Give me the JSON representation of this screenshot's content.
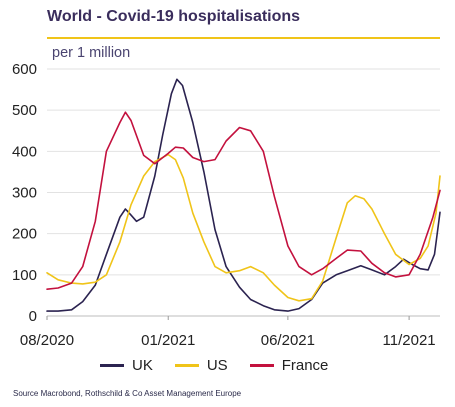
{
  "header": {
    "title": "World - Covid-19 hospitalisations",
    "unit": "per 1 million"
  },
  "source": "Source Macrobond, Rothschild & Co Asset Management Europe",
  "colors": {
    "UK": "#2b2350",
    "US": "#f0c419",
    "France": "#c3113e",
    "accent_rule": "#f0c419",
    "title": "#3a2d5c"
  },
  "chart_data": {
    "type": "line",
    "title": "World - Covid-19 hospitalisations",
    "ylabel": "per 1 million",
    "xlabel": "",
    "ylim": [
      0,
      600
    ],
    "yticks": [
      0,
      100,
      200,
      300,
      400,
      500,
      600
    ],
    "x_start": "2020-08-01",
    "x_end": "2021-12-10",
    "xticks": [
      {
        "date": "2020-08-01",
        "label": "08/2020"
      },
      {
        "date": "2021-01-01",
        "label": "01/2021"
      },
      {
        "date": "2021-06-01",
        "label": "06/2021"
      },
      {
        "date": "2021-11-01",
        "label": "11/2021"
      }
    ],
    "grid": "horizontal",
    "legend_position": "bottom",
    "series": [
      {
        "name": "UK",
        "points": [
          [
            "2020-08-01",
            12
          ],
          [
            "2020-08-15",
            12
          ],
          [
            "2020-09-01",
            15
          ],
          [
            "2020-09-15",
            35
          ],
          [
            "2020-10-01",
            75
          ],
          [
            "2020-10-15",
            150
          ],
          [
            "2020-11-01",
            240
          ],
          [
            "2020-11-08",
            260
          ],
          [
            "2020-11-15",
            245
          ],
          [
            "2020-11-22",
            230
          ],
          [
            "2020-12-01",
            240
          ],
          [
            "2020-12-15",
            340
          ],
          [
            "2020-12-25",
            440
          ],
          [
            "2021-01-05",
            540
          ],
          [
            "2021-01-12",
            575
          ],
          [
            "2021-01-19",
            560
          ],
          [
            "2021-02-01",
            470
          ],
          [
            "2021-02-15",
            350
          ],
          [
            "2021-03-01",
            210
          ],
          [
            "2021-03-15",
            120
          ],
          [
            "2021-04-01",
            70
          ],
          [
            "2021-04-15",
            40
          ],
          [
            "2021-05-01",
            25
          ],
          [
            "2021-05-15",
            15
          ],
          [
            "2021-06-01",
            12
          ],
          [
            "2021-06-15",
            18
          ],
          [
            "2021-07-01",
            40
          ],
          [
            "2021-07-15",
            80
          ],
          [
            "2021-08-01",
            100
          ],
          [
            "2021-08-15",
            110
          ],
          [
            "2021-09-01",
            122
          ],
          [
            "2021-09-15",
            112
          ],
          [
            "2021-10-01",
            100
          ],
          [
            "2021-10-15",
            120
          ],
          [
            "2021-10-25",
            138
          ],
          [
            "2021-11-05",
            125
          ],
          [
            "2021-11-15",
            115
          ],
          [
            "2021-11-25",
            112
          ],
          [
            "2021-12-03",
            150
          ],
          [
            "2021-12-10",
            252
          ]
        ]
      },
      {
        "name": "US",
        "points": [
          [
            "2020-08-01",
            105
          ],
          [
            "2020-08-15",
            88
          ],
          [
            "2020-09-01",
            80
          ],
          [
            "2020-09-15",
            78
          ],
          [
            "2020-10-01",
            82
          ],
          [
            "2020-10-15",
            100
          ],
          [
            "2020-11-01",
            180
          ],
          [
            "2020-11-15",
            270
          ],
          [
            "2020-12-01",
            340
          ],
          [
            "2020-12-15",
            375
          ],
          [
            "2021-01-01",
            392
          ],
          [
            "2021-01-10",
            380
          ],
          [
            "2021-01-20",
            335
          ],
          [
            "2021-02-01",
            250
          ],
          [
            "2021-02-15",
            180
          ],
          [
            "2021-03-01",
            120
          ],
          [
            "2021-03-15",
            105
          ],
          [
            "2021-04-01",
            110
          ],
          [
            "2021-04-15",
            120
          ],
          [
            "2021-05-01",
            105
          ],
          [
            "2021-05-15",
            75
          ],
          [
            "2021-06-01",
            45
          ],
          [
            "2021-06-15",
            37
          ],
          [
            "2021-07-01",
            42
          ],
          [
            "2021-07-15",
            85
          ],
          [
            "2021-08-01",
            190
          ],
          [
            "2021-08-15",
            275
          ],
          [
            "2021-08-25",
            292
          ],
          [
            "2021-09-05",
            285
          ],
          [
            "2021-09-15",
            260
          ],
          [
            "2021-10-01",
            200
          ],
          [
            "2021-10-15",
            150
          ],
          [
            "2021-11-01",
            125
          ],
          [
            "2021-11-15",
            140
          ],
          [
            "2021-11-25",
            170
          ],
          [
            "2021-12-05",
            250
          ],
          [
            "2021-12-10",
            340
          ]
        ]
      },
      {
        "name": "France",
        "points": [
          [
            "2020-08-01",
            65
          ],
          [
            "2020-08-15",
            68
          ],
          [
            "2020-09-01",
            80
          ],
          [
            "2020-09-15",
            120
          ],
          [
            "2020-10-01",
            230
          ],
          [
            "2020-10-15",
            400
          ],
          [
            "2020-11-01",
            470
          ],
          [
            "2020-11-08",
            495
          ],
          [
            "2020-11-15",
            475
          ],
          [
            "2020-12-01",
            390
          ],
          [
            "2020-12-15",
            370
          ],
          [
            "2021-01-01",
            395
          ],
          [
            "2021-01-10",
            410
          ],
          [
            "2021-01-20",
            408
          ],
          [
            "2021-02-01",
            385
          ],
          [
            "2021-02-15",
            375
          ],
          [
            "2021-03-01",
            380
          ],
          [
            "2021-03-15",
            425
          ],
          [
            "2021-04-01",
            458
          ],
          [
            "2021-04-15",
            450
          ],
          [
            "2021-05-01",
            400
          ],
          [
            "2021-05-15",
            290
          ],
          [
            "2021-06-01",
            170
          ],
          [
            "2021-06-15",
            120
          ],
          [
            "2021-07-01",
            100
          ],
          [
            "2021-07-15",
            115
          ],
          [
            "2021-08-01",
            140
          ],
          [
            "2021-08-15",
            160
          ],
          [
            "2021-09-01",
            158
          ],
          [
            "2021-09-15",
            128
          ],
          [
            "2021-10-01",
            105
          ],
          [
            "2021-10-15",
            95
          ],
          [
            "2021-11-01",
            100
          ],
          [
            "2021-11-15",
            150
          ],
          [
            "2021-12-01",
            240
          ],
          [
            "2021-12-10",
            305
          ]
        ]
      }
    ]
  }
}
